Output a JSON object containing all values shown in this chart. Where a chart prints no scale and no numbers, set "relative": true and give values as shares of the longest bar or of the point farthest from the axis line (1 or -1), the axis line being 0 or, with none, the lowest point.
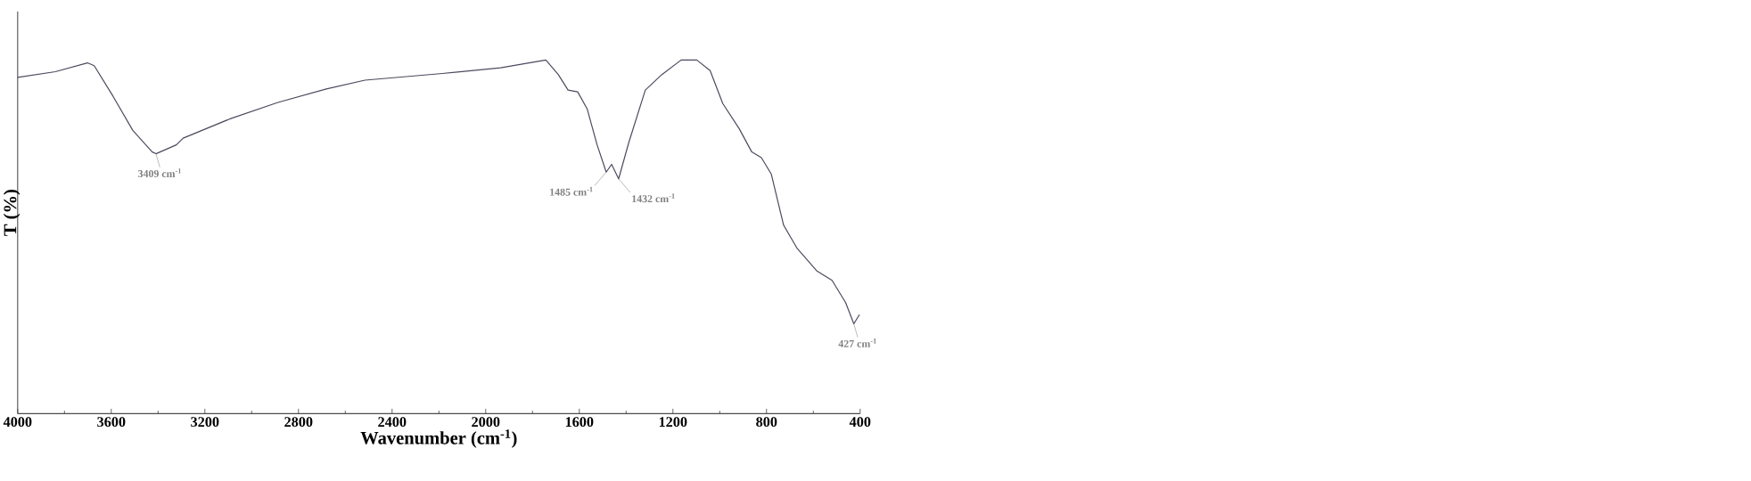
{
  "chart_data": {
    "type": "line",
    "relative": true,
    "xlabel": "Wavenumber (cm$^{-1}$)",
    "ylabel": "T (%)",
    "xlim": [
      4000,
      400
    ],
    "xticks": [
      4000,
      3600,
      3200,
      2800,
      2400,
      2000,
      1600,
      1200,
      800,
      400
    ],
    "x": [
      4000,
      3839,
      3702,
      3673,
      3591,
      3508,
      3425,
      3409,
      3322,
      3293,
      3095,
      2888,
      2681,
      2516,
      2185,
      1937,
      1743,
      1690,
      1648,
      1607,
      1566,
      1524,
      1485,
      1462,
      1432,
      1388,
      1318,
      1247,
      1165,
      1098,
      1041,
      987,
      917,
      863,
      822,
      780,
      727,
      669,
      586,
      520,
      462,
      427,
      403
    ],
    "series": [
      {
        "color": "#4a4a5e",
        "values": [
          0.951,
          0.967,
          0.992,
          0.984,
          0.896,
          0.801,
          0.74,
          0.735,
          0.76,
          0.779,
          0.833,
          0.88,
          0.918,
          0.943,
          0.962,
          0.978,
          1.0,
          0.959,
          0.915,
          0.91,
          0.861,
          0.76,
          0.683,
          0.705,
          0.664,
          0.768,
          0.915,
          0.959,
          1.0,
          1.0,
          0.97,
          0.877,
          0.806,
          0.74,
          0.724,
          0.678,
          0.533,
          0.467,
          0.404,
          0.377,
          0.314,
          0.254,
          0.28
        ]
      }
    ],
    "annotations": [
      {
        "text": "3409 cm$^{-1}$",
        "x": 3409,
        "y": 0.735
      },
      {
        "text": "1485 cm$^{-1}$",
        "x": 1485,
        "y": 0.683
      },
      {
        "text": "1432 cm$^{-1}$",
        "x": 1432,
        "y": 0.664
      },
      {
        "text": "427 cm$^{-1}$",
        "x": 427,
        "y": 0.254
      }
    ],
    "grid": false,
    "legend": false,
    "marker": "none",
    "line_style": "solid"
  }
}
